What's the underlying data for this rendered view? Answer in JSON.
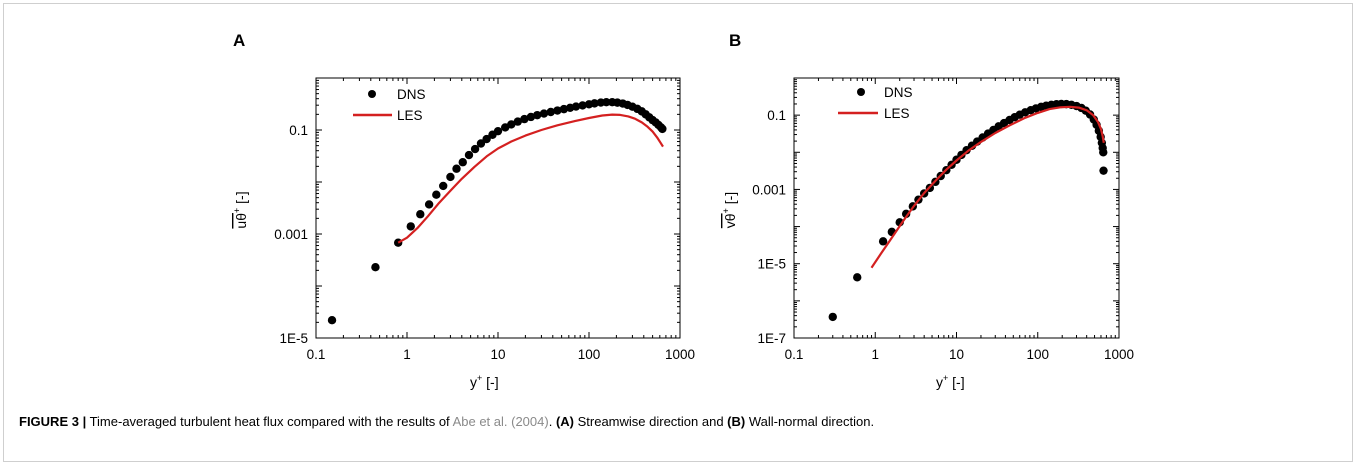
{
  "caption": {
    "figure_label": "FIGURE 3 |",
    "text_before_ref": " Time-averaged turbulent heat flux compared with the results of ",
    "reference": "Abe et al. (2004)",
    "text_after_ref": ". ",
    "part_a_label": "(A)",
    "part_a_text": " Streamwise direction and ",
    "part_b_label": "(B)",
    "part_b_text": " Wall-normal direction."
  },
  "chart_data": [
    {
      "panel": "A",
      "type": "scatter",
      "x_scale": "log",
      "y_scale": "log",
      "xlim": [
        0.1,
        1000
      ],
      "ylim": [
        1e-05,
        1
      ],
      "xticks": [
        "0.1",
        "1",
        "10",
        "100",
        "1000"
      ],
      "yticks": [
        "1E-5",
        "0.001",
        "0.1"
      ],
      "xlabel": "y+ [-]",
      "ylabel": "uθ+ [-]",
      "legend_position": "top-left",
      "series": [
        {
          "name": "DNS",
          "style": "markers",
          "color": "#000000",
          "x": [
            0.15,
            0.45,
            0.8,
            1.1,
            1.4,
            1.75,
            2.1,
            2.5,
            3.0,
            3.5,
            4.1,
            4.8,
            5.6,
            6.5,
            7.5,
            8.7,
            10,
            12,
            14,
            16.5,
            19.5,
            23,
            27,
            32,
            38,
            45,
            53,
            62,
            72,
            85,
            100,
            115,
            135,
            155,
            180,
            205,
            235,
            265,
            300,
            340,
            380,
            420,
            460,
            500,
            540,
            580,
            620,
            640
          ],
          "y": [
            2.2e-05,
            0.00023,
            0.00068,
            0.0014,
            0.0024,
            0.0037,
            0.0057,
            0.0084,
            0.0125,
            0.018,
            0.024,
            0.033,
            0.043,
            0.055,
            0.067,
            0.081,
            0.095,
            0.112,
            0.128,
            0.145,
            0.162,
            0.178,
            0.193,
            0.207,
            0.222,
            0.237,
            0.252,
            0.267,
            0.282,
            0.297,
            0.312,
            0.325,
            0.337,
            0.343,
            0.343,
            0.336,
            0.323,
            0.304,
            0.281,
            0.255,
            0.228,
            0.2,
            0.175,
            0.155,
            0.14,
            0.125,
            0.112,
            0.105
          ]
        },
        {
          "name": "LES",
          "style": "line",
          "color": "#d42020",
          "x": [
            0.8,
            1.0,
            1.3,
            1.7,
            2.2,
            3.0,
            4.0,
            5.5,
            7.5,
            10,
            14,
            20,
            30,
            45,
            70,
            100,
            140,
            180,
            220,
            270,
            320,
            380,
            440,
            500,
            560,
            610,
            650
          ],
          "y": [
            0.00068,
            0.00085,
            0.0013,
            0.0022,
            0.0038,
            0.0068,
            0.0115,
            0.0195,
            0.031,
            0.044,
            0.06,
            0.078,
            0.1,
            0.123,
            0.148,
            0.17,
            0.19,
            0.198,
            0.195,
            0.183,
            0.165,
            0.14,
            0.115,
            0.093,
            0.072,
            0.057,
            0.048
          ]
        }
      ]
    },
    {
      "panel": "B",
      "type": "scatter",
      "x_scale": "log",
      "y_scale": "log",
      "xlim": [
        0.1,
        1000
      ],
      "ylim": [
        1e-07,
        1
      ],
      "xticks": [
        "0.1",
        "1",
        "10",
        "100",
        "1000"
      ],
      "yticks": [
        "1E-7",
        "1E-5",
        "0.001",
        "0.1"
      ],
      "xlabel": "y+ [-]",
      "ylabel": "vθ+ [-]",
      "legend_position": "top-left",
      "series": [
        {
          "name": "DNS",
          "style": "markers",
          "color": "#000000",
          "x": [
            0.3,
            0.6,
            1.25,
            1.6,
            2.0,
            2.4,
            2.9,
            3.4,
            4.0,
            4.7,
            5.5,
            6.4,
            7.5,
            8.7,
            10,
            11.5,
            13.3,
            15.5,
            18,
            21,
            24.5,
            28.5,
            33,
            38.5,
            45,
            52,
            60,
            70,
            82,
            95,
            110,
            127,
            147,
            170,
            195,
            225,
            260,
            300,
            345,
            390,
            440,
            490,
            530,
            565,
            595,
            615,
            630,
            640,
            645
          ],
          "y": [
            3.7e-07,
            4.3e-06,
            4e-05,
            7.2e-05,
            0.00013,
            0.00022,
            0.00035,
            0.00053,
            0.00078,
            0.0011,
            0.0016,
            0.0023,
            0.0033,
            0.0046,
            0.0063,
            0.0085,
            0.0114,
            0.015,
            0.0195,
            0.025,
            0.032,
            0.04,
            0.05,
            0.061,
            0.074,
            0.088,
            0.103,
            0.119,
            0.136,
            0.152,
            0.167,
            0.18,
            0.19,
            0.197,
            0.2,
            0.198,
            0.19,
            0.176,
            0.156,
            0.132,
            0.104,
            0.076,
            0.055,
            0.038,
            0.026,
            0.018,
            0.013,
            0.01,
            0.0032
          ]
        },
        {
          "name": "LES",
          "style": "line",
          "color": "#d42020",
          "x": [
            0.9,
            1.2,
            1.6,
            2.2,
            3.0,
            4.0,
            5.5,
            7.5,
            10,
            14,
            20,
            30,
            45,
            70,
            100,
            140,
            190,
            250,
            320,
            400,
            480,
            550,
            600,
            630,
            650
          ],
          "y": [
            7.8e-06,
            2e-05,
            5e-05,
            0.00014,
            0.00036,
            0.0008,
            0.0017,
            0.0034,
            0.006,
            0.011,
            0.019,
            0.033,
            0.053,
            0.085,
            0.115,
            0.145,
            0.163,
            0.168,
            0.16,
            0.135,
            0.1,
            0.066,
            0.042,
            0.027,
            0.018
          ]
        }
      ]
    }
  ]
}
